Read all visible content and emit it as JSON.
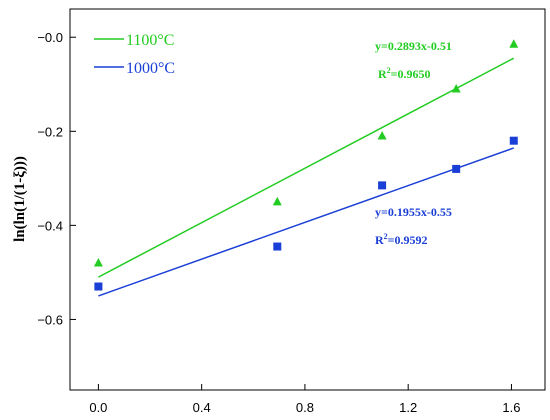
{
  "chart_data": {
    "type": "scatter",
    "title": "",
    "xlabel": "",
    "ylabel": "ln(ln(1/(1-ξ)))",
    "xlim": [
      -0.11,
      1.73
    ],
    "ylim": [
      -0.75,
      0.06
    ],
    "xticks": [
      0.0,
      0.4,
      0.8,
      1.2,
      1.6
    ],
    "xtick_labels": [
      "0.0",
      "0.4",
      "0.8",
      "1.2",
      "1.6"
    ],
    "yticks": [
      0.0,
      -0.2,
      -0.4,
      -0.6
    ],
    "ytick_labels": [
      "−0.0",
      "−0.2",
      "−0.4",
      "−0.6"
    ],
    "grid": false,
    "legend_position": "top-left",
    "series": [
      {
        "name": "1100°C",
        "marker": "triangle",
        "color": "#22cc22",
        "x": [
          0.0,
          0.693,
          1.099,
          1.386,
          1.609
        ],
        "y": [
          -0.48,
          -0.35,
          -0.21,
          -0.11,
          -0.015
        ],
        "fit": {
          "slope": 0.2893,
          "intercept": -0.51,
          "x_range": [
            0.0,
            1.609
          ]
        },
        "equation": "y=0.2893x-0.51",
        "r2_prefix": "R",
        "r2_sup": "2",
        "r2_value": "=0.9650"
      },
      {
        "name": "1000°C",
        "marker": "square",
        "color": "#1a3fd6",
        "x": [
          0.0,
          0.693,
          1.099,
          1.386,
          1.609
        ],
        "y": [
          -0.53,
          -0.445,
          -0.315,
          -0.28,
          -0.22
        ],
        "fit": {
          "slope": 0.1955,
          "intercept": -0.55,
          "x_range": [
            0.0,
            1.609
          ]
        },
        "equation": "y=0.1955x-0.55",
        "r2_prefix": "R",
        "r2_sup": "2",
        "r2_value": "=0.9592"
      }
    ]
  }
}
